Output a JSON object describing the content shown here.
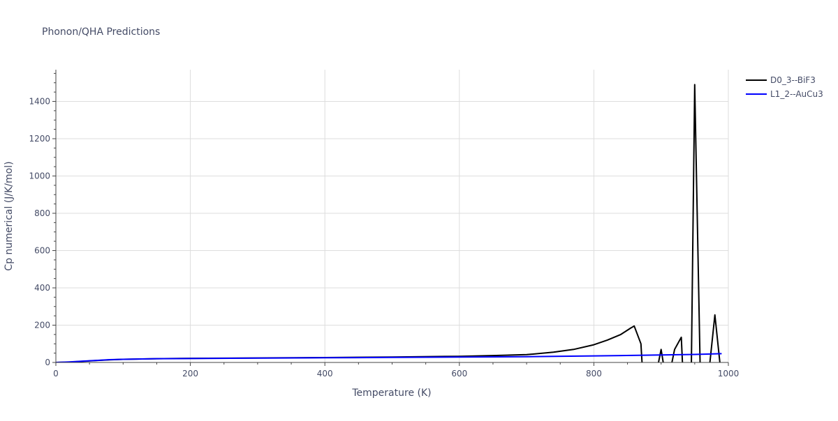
{
  "chart_data": {
    "type": "line",
    "title": "Phonon/QHA Predictions",
    "xlabel": "Temperature (K)",
    "ylabel": "Cp numerical (J/K/mol)",
    "xlim": [
      0,
      1000
    ],
    "ylim": [
      0,
      1570
    ],
    "xticks": [
      0,
      200,
      400,
      600,
      800,
      1000
    ],
    "yticks": [
      0,
      200,
      400,
      600,
      800,
      1000,
      1200,
      1400
    ],
    "grid": true,
    "legend_position": "top-right",
    "series": [
      {
        "name": "D0_3--BiF3",
        "color": "#000000",
        "points": [
          [
            0,
            0
          ],
          [
            20,
            2
          ],
          [
            40,
            6
          ],
          [
            60,
            10
          ],
          [
            80,
            14
          ],
          [
            100,
            17
          ],
          [
            150,
            20
          ],
          [
            200,
            22
          ],
          [
            300,
            24
          ],
          [
            400,
            26
          ],
          [
            500,
            29
          ],
          [
            600,
            33
          ],
          [
            650,
            37
          ],
          [
            700,
            42
          ],
          [
            740,
            55
          ],
          [
            770,
            70
          ],
          [
            800,
            95
          ],
          [
            820,
            120
          ],
          [
            840,
            150
          ],
          [
            855,
            185
          ],
          [
            860,
            195
          ],
          [
            870,
            100
          ],
          [
            872,
            -20
          ],
          [
            895,
            -20
          ],
          [
            900,
            70
          ],
          [
            904,
            -20
          ],
          [
            915,
            -20
          ],
          [
            920,
            70
          ],
          [
            930,
            135
          ],
          [
            932,
            -20
          ],
          [
            945,
            -20
          ],
          [
            950,
            1490
          ],
          [
            958,
            -20
          ],
          [
            972,
            -20
          ],
          [
            980,
            255
          ],
          [
            988,
            -20
          ]
        ]
      },
      {
        "name": "L1_2--AuCu3",
        "color": "#0000ff",
        "points": [
          [
            0,
            0
          ],
          [
            20,
            3
          ],
          [
            40,
            7
          ],
          [
            60,
            11
          ],
          [
            80,
            15
          ],
          [
            100,
            17
          ],
          [
            150,
            20
          ],
          [
            200,
            21
          ],
          [
            300,
            23
          ],
          [
            400,
            25
          ],
          [
            500,
            27
          ],
          [
            600,
            29
          ],
          [
            700,
            31
          ],
          [
            800,
            35
          ],
          [
            900,
            40
          ],
          [
            950,
            43
          ],
          [
            990,
            47
          ]
        ]
      }
    ]
  }
}
